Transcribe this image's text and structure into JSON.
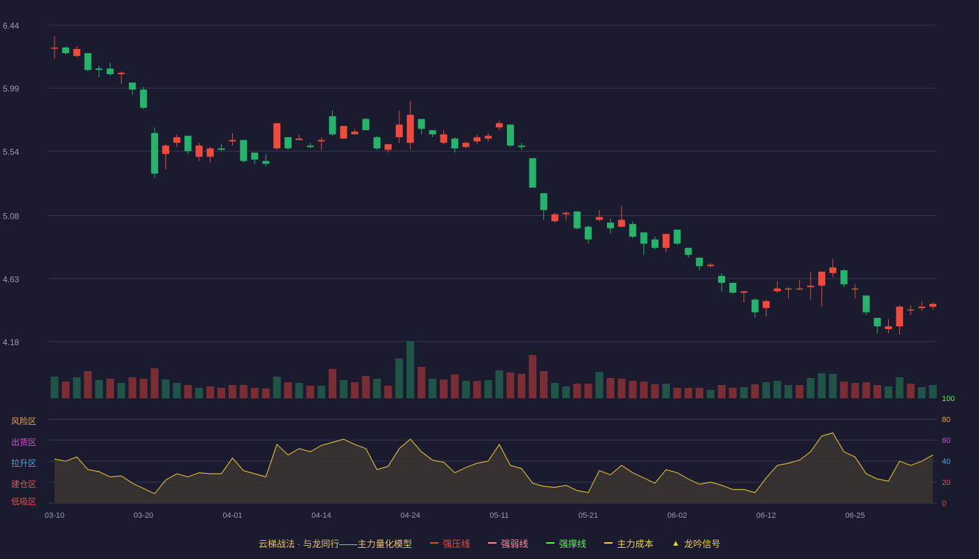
{
  "colors": {
    "background": "#1a1b2e",
    "grid": "#34374e",
    "axis_text": "#9a9db0",
    "up": "#ef4a3c",
    "down": "#26b36a",
    "vol_up": "#7a2e34",
    "vol_down": "#1f5446",
    "indicator_line": "#d9b53a",
    "indicator_fill": "#3a3530"
  },
  "legend": {
    "title": "云梯战法 · 与龙同行——主力量化模型",
    "items": [
      {
        "label": "强压线",
        "color": "#ef4a3c",
        "style": "solid"
      },
      {
        "label": "强弱线",
        "color": "#ff8a9a",
        "style": "dash"
      },
      {
        "label": "强撑线",
        "color": "#5af25a",
        "style": "solid"
      },
      {
        "label": "主力成本",
        "color": "#f2d24c",
        "style": "dash"
      },
      {
        "label": "龙吟信号",
        "color": "#f2c94c",
        "style": "triangle",
        "icon": "▲"
      }
    ]
  },
  "chart_data": [
    {
      "type": "candlestick",
      "title": "",
      "y_ticks": [
        "6.44",
        "5.99",
        "5.54",
        "5.08",
        "4.63",
        "4.18"
      ],
      "ylim": [
        4.18,
        6.44
      ],
      "x_ticks": [
        {
          "index": 0,
          "label": "03-10"
        },
        {
          "index": 8,
          "label": "03-20"
        },
        {
          "index": 16,
          "label": "04-01"
        },
        {
          "index": 24,
          "label": "04-14"
        },
        {
          "index": 32,
          "label": "04-24"
        },
        {
          "index": 40,
          "label": "05-11"
        },
        {
          "index": 48,
          "label": "05-21"
        },
        {
          "index": 56,
          "label": "06-02"
        },
        {
          "index": 64,
          "label": "06-12"
        },
        {
          "index": 72,
          "label": "06-25"
        }
      ],
      "candles": [
        [
          6.28,
          6.28,
          6.36,
          6.2
        ],
        [
          6.28,
          6.24,
          6.29,
          6.23
        ],
        [
          6.22,
          6.27,
          6.29,
          6.21
        ],
        [
          6.24,
          6.12,
          6.24,
          6.11
        ],
        [
          6.13,
          6.12,
          6.15,
          6.07
        ],
        [
          6.13,
          6.09,
          6.17,
          6.08
        ],
        [
          6.09,
          6.1,
          6.11,
          6.02
        ],
        [
          6.03,
          5.98,
          6.03,
          5.94
        ],
        [
          5.98,
          5.85,
          6.0,
          5.84
        ],
        [
          5.67,
          5.38,
          5.71,
          5.35
        ],
        [
          5.52,
          5.58,
          5.59,
          5.41
        ],
        [
          5.6,
          5.64,
          5.66,
          5.57
        ],
        [
          5.65,
          5.54,
          5.65,
          5.52
        ],
        [
          5.5,
          5.58,
          5.6,
          5.47
        ],
        [
          5.5,
          5.56,
          5.57,
          5.46
        ],
        [
          5.56,
          5.55,
          5.59,
          5.54
        ],
        [
          5.61,
          5.62,
          5.67,
          5.58
        ],
        [
          5.62,
          5.47,
          5.62,
          5.46
        ],
        [
          5.53,
          5.48,
          5.53,
          5.45
        ],
        [
          5.47,
          5.45,
          5.52,
          5.43
        ],
        [
          5.56,
          5.74,
          5.74,
          5.55
        ],
        [
          5.64,
          5.56,
          5.64,
          5.55
        ],
        [
          5.62,
          5.63,
          5.66,
          5.62
        ],
        [
          5.58,
          5.57,
          5.6,
          5.56
        ],
        [
          5.61,
          5.62,
          5.64,
          5.55
        ],
        [
          5.79,
          5.66,
          5.83,
          5.65
        ],
        [
          5.63,
          5.72,
          5.72,
          5.63
        ],
        [
          5.66,
          5.68,
          5.7,
          5.66
        ],
        [
          5.77,
          5.69,
          5.78,
          5.69
        ],
        [
          5.64,
          5.56,
          5.65,
          5.55
        ],
        [
          5.55,
          5.59,
          5.59,
          5.53
        ],
        [
          5.64,
          5.73,
          5.83,
          5.6
        ],
        [
          5.6,
          5.8,
          5.9,
          5.55
        ],
        [
          5.77,
          5.7,
          5.77,
          5.66
        ],
        [
          5.69,
          5.66,
          5.69,
          5.64
        ],
        [
          5.6,
          5.66,
          5.69,
          5.59
        ],
        [
          5.63,
          5.56,
          5.64,
          5.53
        ],
        [
          5.57,
          5.6,
          5.61,
          5.56
        ],
        [
          5.61,
          5.64,
          5.66,
          5.59
        ],
        [
          5.63,
          5.65,
          5.67,
          5.61
        ],
        [
          5.71,
          5.74,
          5.76,
          5.69
        ],
        [
          5.73,
          5.58,
          5.73,
          5.57
        ],
        [
          5.58,
          5.57,
          5.6,
          5.55
        ],
        [
          5.49,
          5.28,
          5.49,
          5.28
        ],
        [
          5.24,
          5.12,
          5.24,
          5.05
        ],
        [
          5.04,
          5.09,
          5.1,
          5.03
        ],
        [
          5.09,
          5.1,
          5.11,
          5.05
        ],
        [
          5.11,
          4.99,
          5.11,
          4.98
        ],
        [
          5.0,
          4.91,
          5.01,
          4.88
        ],
        [
          5.05,
          5.07,
          5.12,
          5.04
        ],
        [
          5.03,
          4.99,
          5.06,
          4.95
        ],
        [
          5.0,
          5.05,
          5.15,
          5.0
        ],
        [
          5.02,
          4.93,
          5.04,
          4.92
        ],
        [
          4.96,
          4.88,
          4.96,
          4.8
        ],
        [
          4.91,
          4.85,
          4.93,
          4.84
        ],
        [
          4.85,
          4.95,
          4.95,
          4.82
        ],
        [
          4.98,
          4.88,
          4.98,
          4.87
        ],
        [
          4.85,
          4.8,
          4.85,
          4.78
        ],
        [
          4.78,
          4.72,
          4.78,
          4.69
        ],
        [
          4.72,
          4.73,
          4.74,
          4.71
        ],
        [
          4.65,
          4.6,
          4.67,
          4.54
        ],
        [
          4.6,
          4.53,
          4.6,
          4.52
        ],
        [
          4.53,
          4.54,
          4.54,
          4.46
        ],
        [
          4.48,
          4.39,
          4.49,
          4.35
        ],
        [
          4.42,
          4.47,
          4.48,
          4.36
        ],
        [
          4.54,
          4.56,
          4.61,
          4.53
        ],
        [
          4.56,
          4.56,
          4.57,
          4.49
        ],
        [
          4.56,
          4.56,
          4.62,
          4.55
        ],
        [
          4.57,
          4.58,
          4.68,
          4.48
        ],
        [
          4.58,
          4.68,
          4.68,
          4.43
        ],
        [
          4.67,
          4.71,
          4.77,
          4.64
        ],
        [
          4.69,
          4.59,
          4.7,
          4.57
        ],
        [
          4.56,
          4.56,
          4.59,
          4.49
        ],
        [
          4.51,
          4.39,
          4.51,
          4.37
        ],
        [
          4.35,
          4.29,
          4.35,
          4.24
        ],
        [
          4.27,
          4.29,
          4.34,
          4.24
        ],
        [
          4.29,
          4.43,
          4.44,
          4.23
        ],
        [
          4.41,
          4.41,
          4.44,
          4.37
        ],
        [
          4.42,
          4.43,
          4.47,
          4.4
        ],
        [
          4.43,
          4.45,
          4.46,
          4.41
        ]
      ],
      "candle_format": [
        "open",
        "close",
        "high",
        "low"
      ]
    },
    {
      "type": "bar",
      "title": "",
      "volume": [
        31,
        24,
        30,
        39,
        26,
        28,
        22,
        30,
        28,
        43,
        27,
        22,
        19,
        15,
        17,
        15,
        19,
        19,
        15,
        14,
        31,
        23,
        22,
        18,
        18,
        42,
        26,
        23,
        32,
        28,
        18,
        57,
        82,
        45,
        28,
        27,
        34,
        25,
        25,
        26,
        40,
        37,
        35,
        62,
        39,
        22,
        17,
        21,
        21,
        38,
        29,
        28,
        25,
        24,
        20,
        21,
        15,
        15,
        15,
        12,
        19,
        15,
        16,
        20,
        23,
        25,
        19,
        19,
        29,
        36,
        35,
        24,
        22,
        23,
        19,
        17,
        30,
        21,
        16,
        19
      ],
      "direction": [
        "down",
        "up",
        "down",
        "up",
        "down",
        "up",
        "down",
        "up",
        "up",
        "up",
        "down",
        "down",
        "up",
        "down",
        "up",
        "up",
        "up",
        "up",
        "up",
        "up",
        "down",
        "up",
        "down",
        "up",
        "down",
        "up",
        "down",
        "up",
        "up",
        "down",
        "up",
        "down",
        "down",
        "up",
        "down",
        "up",
        "up",
        "down",
        "up",
        "down",
        "down",
        "up",
        "up",
        "up",
        "up",
        "down",
        "down",
        "up",
        "up",
        "down",
        "up",
        "up",
        "up",
        "up",
        "up",
        "down",
        "up",
        "up",
        "up",
        "down",
        "up",
        "up",
        "down",
        "up",
        "down",
        "down",
        "down",
        "up",
        "down",
        "down",
        "down",
        "up",
        "up",
        "up",
        "up",
        "down",
        "down",
        "up",
        "down",
        "down"
      ]
    },
    {
      "type": "area",
      "title": "",
      "ylim": [
        0,
        100
      ],
      "y_ticks_right": [
        {
          "value": 100,
          "label": "100",
          "color": "#5af25a"
        },
        {
          "value": 80,
          "label": "80",
          "color": "#e6a44c"
        },
        {
          "value": 60,
          "label": "60",
          "color": "#d84fd8"
        },
        {
          "value": 40,
          "label": "40",
          "color": "#4fa6e6"
        },
        {
          "value": 20,
          "label": "20",
          "color": "#e6504c"
        },
        {
          "value": 0,
          "label": "0",
          "color": "#e6504c"
        }
      ],
      "zones_left": [
        {
          "value": 80,
          "label": "风险区",
          "color": "#e6a44c"
        },
        {
          "value": 60,
          "label": "出货区",
          "color": "#d84fd8"
        },
        {
          "value": 40,
          "label": "拉升区",
          "color": "#4fa6e6"
        },
        {
          "value": 20,
          "label": "建仓区",
          "color": "#e6504c"
        },
        {
          "value": 0,
          "label": "低吸区",
          "color": "#e6504c"
        }
      ],
      "values": [
        42,
        40,
        44,
        32,
        30,
        25,
        26,
        19,
        14,
        9,
        22,
        28,
        25,
        29,
        28,
        28,
        43,
        31,
        28,
        25,
        56,
        46,
        52,
        49,
        55,
        58,
        61,
        56,
        52,
        32,
        35,
        52,
        61,
        49,
        41,
        39,
        29,
        34,
        38,
        40,
        56,
        36,
        33,
        19,
        16,
        15,
        17,
        12,
        10,
        31,
        27,
        36,
        29,
        24,
        19,
        32,
        29,
        23,
        18,
        20,
        17,
        13,
        13,
        10,
        24,
        36,
        38,
        41,
        49,
        64,
        67,
        49,
        44,
        28,
        23,
        21,
        40,
        36,
        40,
        46
      ]
    }
  ]
}
